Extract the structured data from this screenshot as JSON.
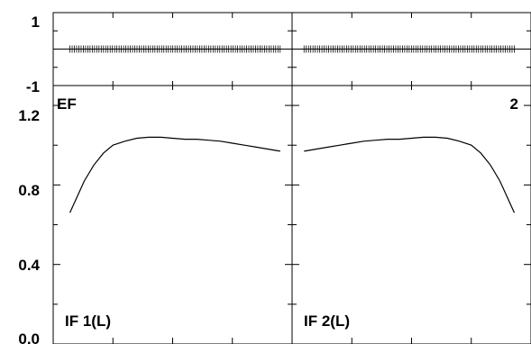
{
  "chart_data": {
    "type": "line",
    "top_panel": {
      "ylim": [
        -1,
        1
      ],
      "ytick_labels": [
        "1",
        "-1"
      ],
      "yticks": [
        1,
        -1
      ],
      "zero_line": 0
    },
    "main_panel": {
      "ylim": [
        0.0,
        1.3
      ],
      "ytick_labels": [
        "1.2",
        "0.8",
        "0.4",
        "0.0"
      ],
      "yticks": [
        1.2,
        0.8,
        0.4,
        0.0
      ],
      "corner_label_left": "EF",
      "corner_label_right": "2"
    },
    "x_axis": {
      "xlim": [
        0,
        1
      ],
      "ticks": [
        0.25,
        0.5,
        0.75
      ]
    },
    "panels": [
      {
        "name": "IF 1(L)",
        "label": "IF 1(L)",
        "x": [
          0.07,
          0.1,
          0.13,
          0.17,
          0.21,
          0.25,
          0.3,
          0.35,
          0.4,
          0.45,
          0.5,
          0.55,
          0.6,
          0.65,
          0.7,
          0.75,
          0.8,
          0.85,
          0.9,
          0.95
        ],
        "y": [
          0.66,
          0.74,
          0.82,
          0.9,
          0.96,
          1.0,
          1.02,
          1.035,
          1.04,
          1.04,
          1.035,
          1.03,
          1.03,
          1.025,
          1.02,
          1.01,
          1.0,
          0.99,
          0.98,
          0.97
        ],
        "residual_ticks": {
          "x_start": 0.07,
          "x_end": 0.95,
          "count": 95
        }
      },
      {
        "name": "IF 2(L)",
        "label": "IF 2(L)",
        "x": [
          0.05,
          0.1,
          0.15,
          0.2,
          0.25,
          0.3,
          0.35,
          0.4,
          0.45,
          0.5,
          0.55,
          0.6,
          0.65,
          0.7,
          0.75,
          0.79,
          0.83,
          0.87,
          0.9,
          0.93
        ],
        "y": [
          0.97,
          0.98,
          0.99,
          1.0,
          1.01,
          1.02,
          1.025,
          1.03,
          1.03,
          1.035,
          1.04,
          1.04,
          1.035,
          1.02,
          1.0,
          0.96,
          0.9,
          0.82,
          0.74,
          0.66
        ],
        "residual_ticks": {
          "x_start": 0.05,
          "x_end": 0.93,
          "count": 95
        }
      }
    ]
  }
}
